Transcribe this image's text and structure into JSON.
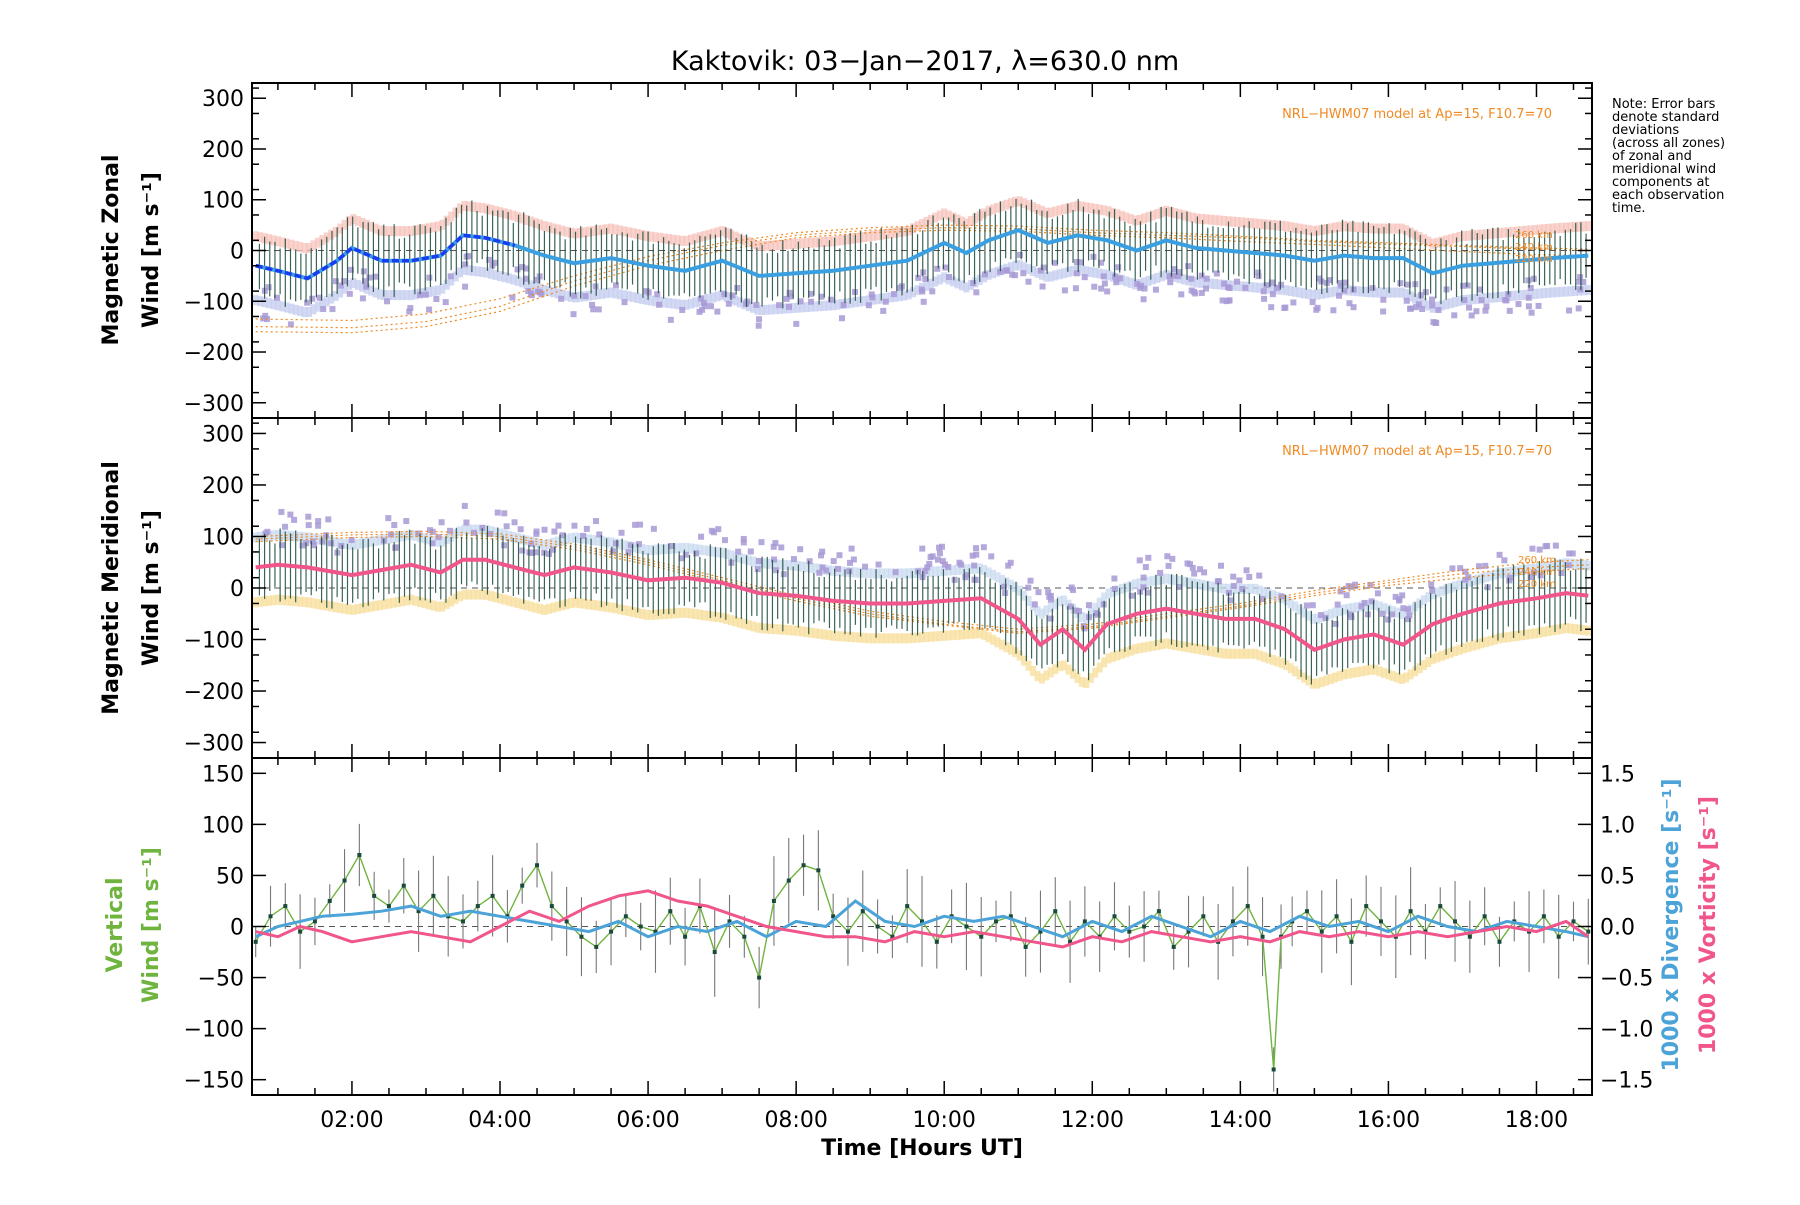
{
  "chart_data": [
    {
      "type": "line",
      "title": "Kaktovik: 03−Jan−2017, λ=630.0 nm",
      "ylabel_line1": "Magnetic Zonal",
      "ylabel_line2": "Wind [m s⁻¹]",
      "ylim": [
        -330,
        330
      ],
      "yticks": [
        300,
        200,
        100,
        0,
        -100,
        -200,
        -300
      ],
      "xlim": [
        0.65,
        18.75
      ],
      "model_label": "NRL−HWM07 model at Ap=15, F10.7=70",
      "altitude_labels": [
        "260 km",
        "240 km",
        "220 km"
      ],
      "model_curves": [
        {
          "name": "260 km",
          "x": [
            0.7,
            2,
            3,
            4,
            5,
            6,
            7,
            8,
            9,
            10,
            11,
            12,
            13,
            14,
            15,
            16,
            17,
            18,
            18.7
          ],
          "y": [
            -150,
            -152,
            -140,
            -110,
            -60,
            -20,
            10,
            30,
            40,
            45,
            43,
            35,
            30,
            25,
            18,
            12,
            8,
            2,
            0
          ]
        },
        {
          "name": "240 km",
          "x": [
            0.7,
            2,
            3,
            4,
            5,
            6,
            7,
            8,
            9,
            10,
            11,
            12,
            13,
            14,
            15,
            16,
            17,
            18,
            18.7
          ],
          "y": [
            -160,
            -162,
            -150,
            -120,
            -70,
            -30,
            0,
            25,
            35,
            40,
            38,
            30,
            25,
            18,
            12,
            5,
            -2,
            -8,
            -10
          ]
        },
        {
          "name": "220 km",
          "x": [
            0.7,
            2,
            3,
            4,
            5,
            6,
            7,
            8,
            9,
            10,
            11,
            12,
            13,
            14,
            15,
            16,
            17,
            18,
            18.7
          ],
          "y": [
            -135,
            -138,
            -125,
            -95,
            -50,
            -12,
            15,
            35,
            45,
            50,
            48,
            40,
            35,
            28,
            20,
            15,
            10,
            5,
            3
          ]
        }
      ],
      "series": [
        {
          "name": "Zonal wind (mean)",
          "x": [
            0.7,
            1.0,
            1.4,
            1.8,
            2.0,
            2.4,
            2.8,
            3.2,
            3.5,
            3.8,
            4.2,
            4.6,
            5.0,
            5.5,
            6.0,
            6.5,
            7.0,
            7.5,
            8.0,
            8.5,
            9.0,
            9.5,
            10.0,
            10.3,
            10.6,
            11.0,
            11.4,
            11.8,
            12.2,
            12.6,
            13.0,
            13.4,
            13.8,
            14.2,
            14.6,
            15.0,
            15.4,
            15.8,
            16.2,
            16.6,
            17.0,
            17.4,
            17.8,
            18.2,
            18.7
          ],
          "y": [
            -30,
            -40,
            -55,
            -20,
            5,
            -20,
            -20,
            -10,
            30,
            25,
            10,
            -10,
            -25,
            -15,
            -30,
            -40,
            -20,
            -50,
            -45,
            -40,
            -30,
            -20,
            15,
            -5,
            20,
            40,
            15,
            30,
            20,
            0,
            20,
            5,
            0,
            -5,
            -10,
            -20,
            -10,
            -15,
            -15,
            -45,
            -30,
            -25,
            -20,
            -15,
            -10
          ]
        },
        {
          "name": "Zonal wind (error band)",
          "half_width": 60
        }
      ]
    },
    {
      "type": "line",
      "ylabel_line1": "Magnetic Meridional",
      "ylabel_line2": "Wind [m s⁻¹]",
      "ylim": [
        -330,
        330
      ],
      "yticks": [
        300,
        200,
        100,
        0,
        -100,
        -200,
        -300
      ],
      "xlim": [
        0.65,
        18.75
      ],
      "model_label": "NRL−HWM07 model at Ap=15, F10.7=70",
      "altitude_labels": [
        "260 km",
        "240 km",
        "220 km"
      ],
      "model_curves": [
        {
          "name": "260 km",
          "x": [
            0.7,
            2,
            3,
            4,
            5,
            6,
            7,
            8,
            9,
            10,
            11,
            12,
            13,
            14,
            15,
            16,
            17,
            18,
            18.7
          ],
          "y": [
            100,
            108,
            110,
            105,
            85,
            55,
            20,
            -15,
            -45,
            -65,
            -80,
            -70,
            -50,
            -30,
            -5,
            15,
            35,
            50,
            55
          ]
        },
        {
          "name": "240 km",
          "x": [
            0.7,
            2,
            3,
            4,
            5,
            6,
            7,
            8,
            9,
            10,
            11,
            12,
            13,
            14,
            15,
            16,
            17,
            18,
            18.7
          ],
          "y": [
            95,
            103,
            105,
            100,
            80,
            50,
            15,
            -20,
            -50,
            -70,
            -85,
            -75,
            -55,
            -35,
            -10,
            10,
            28,
            40,
            45
          ]
        },
        {
          "name": "220 km",
          "x": [
            0.7,
            2,
            3,
            4,
            5,
            6,
            7,
            8,
            9,
            10,
            11,
            12,
            13,
            14,
            15,
            16,
            17,
            18,
            18.7
          ],
          "y": [
            90,
            98,
            100,
            95,
            75,
            45,
            10,
            -25,
            -55,
            -72,
            -88,
            -78,
            -58,
            -38,
            -15,
            5,
            20,
            32,
            38
          ]
        }
      ],
      "series": [
        {
          "name": "Meridional wind (mean)",
          "x": [
            0.7,
            1.0,
            1.4,
            1.8,
            2.0,
            2.4,
            2.8,
            3.2,
            3.5,
            3.8,
            4.2,
            4.6,
            5.0,
            5.5,
            6.0,
            6.5,
            7.0,
            7.5,
            8.0,
            8.5,
            9.0,
            9.5,
            10.0,
            10.5,
            11.0,
            11.3,
            11.6,
            11.9,
            12.2,
            12.6,
            13.0,
            13.4,
            13.8,
            14.2,
            14.6,
            15.0,
            15.4,
            15.8,
            16.2,
            16.6,
            17.0,
            17.5,
            18.0,
            18.4,
            18.7
          ],
          "y": [
            40,
            45,
            40,
            30,
            25,
            35,
            45,
            30,
            55,
            55,
            40,
            25,
            40,
            30,
            15,
            20,
            10,
            -10,
            -15,
            -25,
            -30,
            -30,
            -25,
            -20,
            -60,
            -110,
            -80,
            -120,
            -70,
            -50,
            -40,
            -50,
            -60,
            -60,
            -80,
            -120,
            -100,
            -90,
            -110,
            -70,
            -50,
            -30,
            -20,
            -10,
            -15
          ]
        },
        {
          "name": "Meridional wind (error band)",
          "half_width": 60
        }
      ]
    },
    {
      "type": "line",
      "xlabel": "Time [Hours UT]",
      "xticks": [
        "02:00",
        "04:00",
        "06:00",
        "08:00",
        "10:00",
        "12:00",
        "14:00",
        "16:00",
        "18:00"
      ],
      "xtick_values": [
        2,
        4,
        6,
        8,
        10,
        12,
        14,
        16,
        18
      ],
      "xlim": [
        0.65,
        18.75
      ],
      "ylabel_line1": "Vertical",
      "ylabel_line2": "Wind [m s⁻¹]",
      "ylim": [
        -165,
        165
      ],
      "yticks": [
        150,
        100,
        50,
        0,
        -50,
        -100,
        -150
      ],
      "y2label_1": "1000 x Divergence [s⁻¹]",
      "y2label_2": "1000 x Vorticity [s⁻¹]",
      "y2lim": [
        -1.65,
        1.65
      ],
      "y2ticks": [
        "1.5",
        "1.0",
        "0.5",
        "0.0",
        "−0.5",
        "−1.0",
        "−1.5"
      ],
      "y2tick_values": [
        1.5,
        1.0,
        0.5,
        0.0,
        -0.5,
        -1.0,
        -1.5
      ],
      "series": [
        {
          "name": "Vertical wind",
          "color": "#6fb43f",
          "x": [
            0.7,
            0.9,
            1.1,
            1.3,
            1.5,
            1.7,
            1.9,
            2.1,
            2.3,
            2.5,
            2.7,
            2.9,
            3.1,
            3.3,
            3.5,
            3.7,
            3.9,
            4.1,
            4.3,
            4.5,
            4.7,
            4.9,
            5.1,
            5.3,
            5.5,
            5.7,
            5.9,
            6.1,
            6.3,
            6.5,
            6.7,
            6.9,
            7.1,
            7.3,
            7.5,
            7.7,
            7.9,
            8.1,
            8.3,
            8.5,
            8.7,
            8.9,
            9.1,
            9.3,
            9.5,
            9.7,
            9.9,
            10.1,
            10.3,
            10.5,
            10.7,
            10.9,
            11.1,
            11.3,
            11.5,
            11.7,
            11.9,
            12.1,
            12.3,
            12.5,
            12.7,
            12.9,
            13.1,
            13.3,
            13.5,
            13.7,
            13.9,
            14.1,
            14.3,
            14.45,
            14.55,
            14.7,
            14.9,
            15.1,
            15.3,
            15.5,
            15.7,
            15.9,
            16.1,
            16.3,
            16.5,
            16.7,
            16.9,
            17.1,
            17.3,
            17.5,
            17.7,
            17.9,
            18.1,
            18.3,
            18.5,
            18.7
          ],
          "y": [
            -15,
            10,
            20,
            -5,
            5,
            25,
            45,
            70,
            30,
            20,
            40,
            15,
            30,
            10,
            5,
            20,
            30,
            10,
            40,
            60,
            20,
            5,
            -10,
            -20,
            -5,
            10,
            0,
            -5,
            15,
            -10,
            20,
            -25,
            5,
            -10,
            -50,
            25,
            45,
            60,
            55,
            10,
            -5,
            15,
            0,
            -10,
            20,
            5,
            -15,
            10,
            0,
            -10,
            5,
            10,
            -20,
            -5,
            15,
            -15,
            5,
            -10,
            10,
            -5,
            0,
            15,
            -20,
            -5,
            10,
            -15,
            5,
            20,
            -10,
            -140,
            -10,
            5,
            15,
            -5,
            10,
            -15,
            20,
            5,
            -10,
            15,
            -5,
            20,
            5,
            -10,
            10,
            -15,
            5,
            -5,
            10,
            -10,
            5,
            -5
          ]
        },
        {
          "name": "1000 x Divergence",
          "color": "#4ba3d8",
          "x": [
            0.7,
            1.0,
            1.3,
            1.6,
            2.0,
            2.4,
            2.8,
            3.2,
            3.6,
            4.0,
            4.4,
            4.8,
            5.2,
            5.6,
            6.0,
            6.4,
            6.8,
            7.2,
            7.6,
            8.0,
            8.4,
            8.8,
            9.2,
            9.6,
            10.0,
            10.4,
            10.8,
            11.2,
            11.6,
            12.0,
            12.4,
            12.8,
            13.2,
            13.6,
            14.0,
            14.4,
            14.8,
            15.2,
            15.6,
            16.0,
            16.4,
            16.8,
            17.2,
            17.6,
            18.0,
            18.4,
            18.7
          ],
          "y": [
            -0.1,
            0.0,
            0.05,
            0.1,
            0.12,
            0.15,
            0.2,
            0.1,
            0.15,
            0.1,
            0.05,
            0.0,
            -0.05,
            0.05,
            -0.1,
            0.0,
            -0.05,
            0.05,
            -0.1,
            0.05,
            0.0,
            0.25,
            0.05,
            0.0,
            0.1,
            0.05,
            0.1,
            0.0,
            -0.1,
            0.05,
            -0.05,
            0.1,
            0.0,
            -0.1,
            0.05,
            -0.05,
            0.1,
            0.0,
            0.05,
            -0.05,
            0.1,
            0.0,
            -0.05,
            0.05,
            0.0,
            -0.05,
            -0.1
          ]
        },
        {
          "name": "1000 x Vorticity",
          "color": "#f0558c",
          "x": [
            0.7,
            1.0,
            1.3,
            1.6,
            2.0,
            2.4,
            2.8,
            3.2,
            3.6,
            4.0,
            4.4,
            4.8,
            5.2,
            5.6,
            6.0,
            6.4,
            6.8,
            7.2,
            7.6,
            8.0,
            8.4,
            8.8,
            9.2,
            9.6,
            10.0,
            10.4,
            10.8,
            11.2,
            11.6,
            12.0,
            12.4,
            12.8,
            13.2,
            13.6,
            14.0,
            14.4,
            14.8,
            15.2,
            15.6,
            16.0,
            16.4,
            16.8,
            17.2,
            17.6,
            18.0,
            18.4,
            18.7
          ],
          "y": [
            -0.05,
            -0.1,
            0.0,
            -0.05,
            -0.15,
            -0.1,
            -0.05,
            -0.1,
            -0.15,
            0.0,
            0.15,
            0.05,
            0.2,
            0.3,
            0.35,
            0.25,
            0.2,
            0.1,
            0.0,
            -0.05,
            -0.1,
            -0.1,
            -0.15,
            -0.05,
            -0.1,
            -0.05,
            -0.1,
            -0.15,
            -0.2,
            -0.1,
            -0.15,
            -0.05,
            -0.1,
            -0.15,
            -0.1,
            -0.15,
            -0.05,
            -0.1,
            -0.05,
            -0.1,
            -0.05,
            -0.1,
            -0.05,
            0.0,
            -0.05,
            0.05,
            -0.1
          ]
        }
      ]
    }
  ],
  "note_lines": [
    "Note: Error bars",
    "denote standard",
    "deviations",
    "(across all zones)",
    "of zonal and",
    "meridional wind",
    "components at",
    "each observation",
    "time."
  ],
  "colors": {
    "zonal_mean": "#3a9fe0",
    "zonal_early": "#1a3cf0",
    "meridional_mean": "#f0558c",
    "error_bars": "#1a4a3a",
    "model": "#f08a24",
    "scatter": "#a89ad6",
    "bg_red": "#f7c0b8",
    "bg_yellow": "#f7e0a0"
  }
}
